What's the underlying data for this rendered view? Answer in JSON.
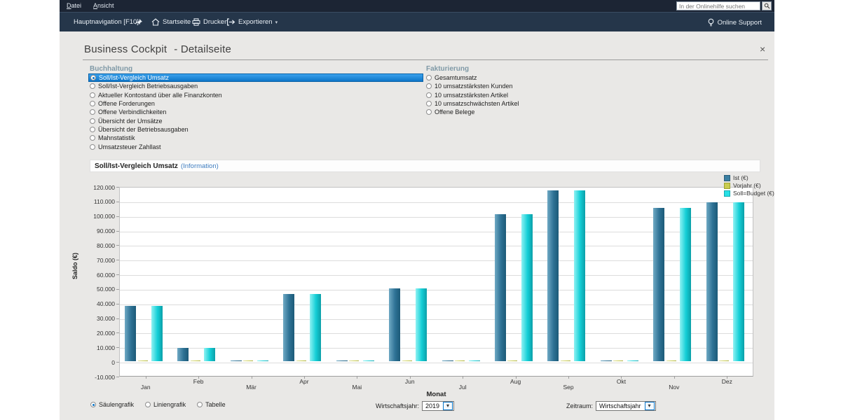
{
  "menubar": {
    "items": [
      {
        "label": "Datei"
      },
      {
        "label": "Ansicht"
      }
    ],
    "search": {
      "placeholder": "In der Onlinehilfe suchen"
    }
  },
  "toolbar": {
    "hauptnavigation": "Hauptnavigation [F10]",
    "startseite": "Startseite",
    "drucken": "Drucken",
    "exportieren": "Exportieren",
    "dropdown_arrow": "▾",
    "online_support": "Online Support"
  },
  "page": {
    "title": "Business Cockpit",
    "subtitle": "- Detailseite",
    "close": "×"
  },
  "buchhaltung": {
    "header": "Buchhaltung",
    "selected_index": 0,
    "items": [
      "Soll/Ist-Vergleich Umsatz",
      "Soll/Ist-Vergleich Betriebsausgaben",
      "Aktueller Kontostand über alle Finanzkonten",
      "Offene Forderungen",
      "Offene Verbindlichkeiten",
      "Übersicht der Umsätze",
      "Übersicht der Betriebsausgaben",
      "Mahnstatistik",
      "Umsatzsteuer Zahllast"
    ]
  },
  "fakturierung": {
    "header": "Fakturierung",
    "selected_index": -1,
    "items": [
      "Gesamtumsatz",
      "10 umsatzstärksten Kunden",
      "10 umsatzstärksten Artikel",
      "10 umsatzschwächsten Artikel",
      "Offene Belege"
    ]
  },
  "report": {
    "title": "Soll/Ist-Vergleich Umsatz",
    "link": "(Information)"
  },
  "chart_data": {
    "type": "bar",
    "title": "Soll/Ist-Vergleich Umsatz",
    "xlabel": "Monat",
    "ylabel": "Saldo (€)",
    "ylim": [
      -10000,
      120000
    ],
    "ytick_step": 10000,
    "grid": true,
    "legend_position": "top-right",
    "categories": [
      "Jan",
      "Feb",
      "Mär",
      "Apr",
      "Mai",
      "Jun",
      "Jul",
      "Aug",
      "Sep",
      "Okt",
      "Nov",
      "Dez"
    ],
    "series": [
      {
        "name": "Ist (€)",
        "color": "#2e7295",
        "values": [
          38000,
          9000,
          500,
          46000,
          300,
          50000,
          700,
          101000,
          117000,
          400,
          105000,
          109000
        ]
      },
      {
        "name": "Vorjahr (€)",
        "color": "#c9cc4f",
        "values": [
          500,
          500,
          300,
          500,
          300,
          500,
          400,
          600,
          600,
          300,
          600,
          600
        ]
      },
      {
        "name": "Soll=Budget (€)",
        "color": "#14ced6",
        "values": [
          38000,
          9000,
          500,
          46000,
          400,
          50000,
          700,
          101000,
          117000,
          400,
          105000,
          109000
        ]
      }
    ]
  },
  "controls": {
    "view_options": [
      "Säulengrafik",
      "Liniengrafik",
      "Tabelle"
    ],
    "selected_view": 0,
    "wirtschaftsjahr_label": "Wirtschaftsjahr:",
    "wirtschaftsjahr_value": "2019",
    "zeitraum_label": "Zeitraum:",
    "zeitraum_value": "Wirtschaftsjahr",
    "dropdown_arrow": "▾"
  }
}
